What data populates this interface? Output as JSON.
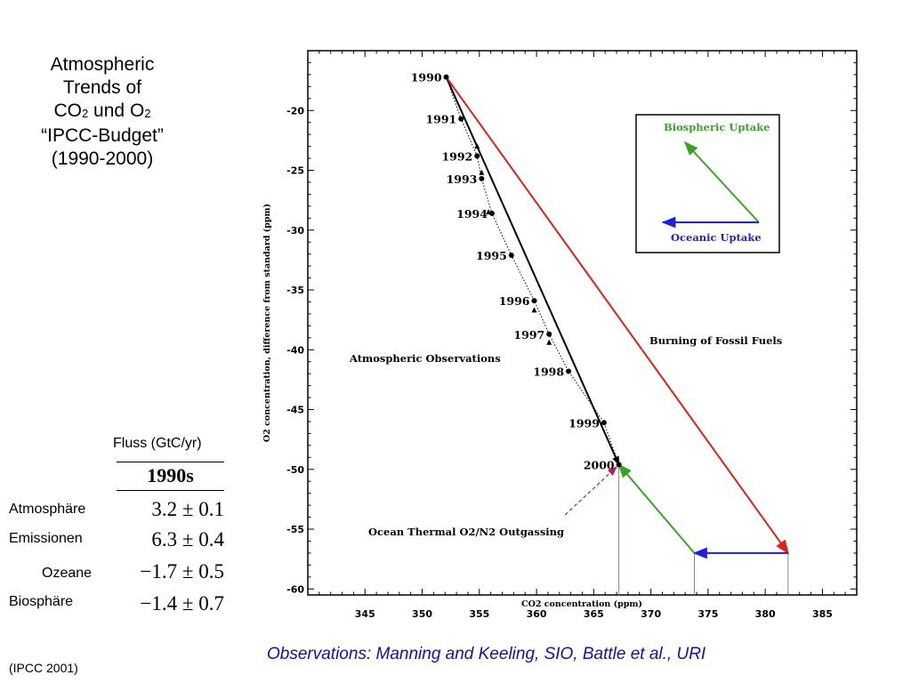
{
  "slide": {
    "title": {
      "line1": "Atmospheric",
      "line2": "Trends of",
      "co2_base": "CO",
      "co2_sub": "2",
      "und": " und ",
      "o2_base": "O",
      "o2_sub": "2",
      "line4": "“IPCC-Budget”",
      "line5": "(1990-2000)"
    },
    "source_note": "Observations: Manning and Keeling, SIO, Battle et al., URI",
    "citation": "(IPCC 2001)"
  },
  "budget_table": {
    "column_label": "Fluss (GtC/yr)",
    "decade": "1990s",
    "rows": [
      {
        "label": "Atmosphäre",
        "value": "3.2 ± 0.1"
      },
      {
        "label": "Emissionen",
        "value": "6.3 ± 0.4"
      },
      {
        "label": "Ozeane",
        "value": "−1.7 ± 0.5"
      },
      {
        "label": "Biosphäre",
        "value": "−1.4 ± 0.7"
      }
    ]
  },
  "chart_data": {
    "type": "line",
    "xlabel": "CO2 concentration (ppm)",
    "ylabel": "O2 concentration, difference from standard (ppm)",
    "xlim": [
      340,
      388
    ],
    "ylim": [
      -60.5,
      -15
    ],
    "x_ticks": [
      345,
      350,
      355,
      360,
      365,
      370,
      375,
      380,
      385
    ],
    "y_ticks": [
      -20,
      -25,
      -30,
      -35,
      -40,
      -45,
      -50,
      -55,
      -60
    ],
    "series": [
      {
        "name": "Atmospheric Observations",
        "points": [
          {
            "label": "1990",
            "x": 352.1,
            "y": -17.2
          },
          {
            "label": "1991",
            "x": 353.4,
            "y": -20.7
          },
          {
            "label": "1992",
            "x": 354.8,
            "y": -23.8
          },
          {
            "label": "1993",
            "x": 355.2,
            "y": -25.7
          },
          {
            "label": "1994",
            "x": 356.1,
            "y": -28.6
          },
          {
            "label": "1995",
            "x": 357.8,
            "y": -32.1
          },
          {
            "label": "1996",
            "x": 359.8,
            "y": -35.9
          },
          {
            "label": "1997",
            "x": 361.1,
            "y": -38.7
          },
          {
            "label": "1998",
            "x": 362.8,
            "y": -41.8
          },
          {
            "label": "1999",
            "x": 365.9,
            "y": -46.1
          },
          {
            "label": "2000",
            "x": 367.2,
            "y": -49.6
          }
        ],
        "secondary_points": [
          {
            "x": 354.8,
            "y": -23.0
          },
          {
            "x": 355.2,
            "y": -25.2
          },
          {
            "x": 355.8,
            "y": -28.5
          },
          {
            "x": 359.8,
            "y": -36.7
          },
          {
            "x": 361.1,
            "y": -39.4
          }
        ]
      }
    ],
    "vectors": [
      {
        "name": "Observed trend",
        "from": [
          352.1,
          -17.2
        ],
        "to": [
          367.2,
          -49.6
        ],
        "color": "#000000"
      },
      {
        "name": "Burning of Fossil Fuels",
        "from": [
          352.1,
          -17.2
        ],
        "to": [
          382.0,
          -57.0
        ],
        "color": "#e0201b"
      },
      {
        "name": "Oceanic Uptake",
        "from": [
          382.0,
          -57.0
        ],
        "to": [
          373.8,
          -57.0
        ],
        "color": "#1f1fe0"
      },
      {
        "name": "Biospheric Uptake",
        "from": [
          373.8,
          -57.0
        ],
        "to": [
          367.2,
          -49.6
        ],
        "color": "#3aa325"
      },
      {
        "name": "Ocean Thermal O2/N2 Outgassing",
        "from": [
          362.5,
          -53.8
        ],
        "to": [
          367.0,
          -49.8
        ],
        "color": "#c2185b",
        "dashed": true
      }
    ],
    "drop_lines_x": [
      367.2,
      373.8,
      382.0
    ],
    "annotations": {
      "observations": "Atmospheric Observations",
      "fossil": "Burning of Fossil Fuels",
      "outgassing": "Ocean Thermal O2/N2 Outgassing"
    },
    "legend": {
      "position": "top-right",
      "biospheric": {
        "text": "Biospheric Uptake",
        "color": "#3aa325"
      },
      "oceanic": {
        "text": "Oceanic Uptake",
        "color": "#1f1fe0"
      }
    },
    "grid": false
  }
}
